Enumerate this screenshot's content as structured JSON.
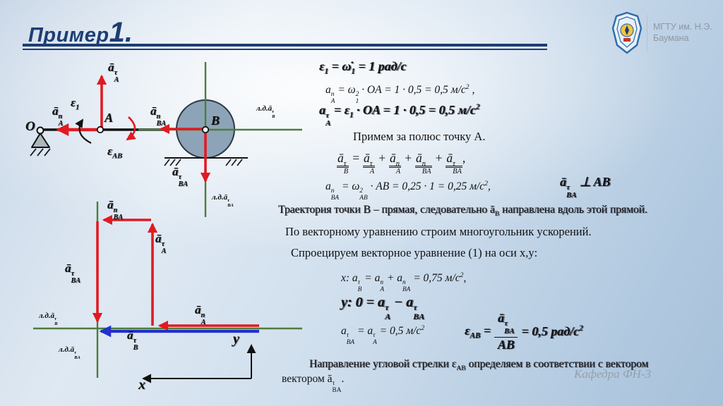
{
  "header": {
    "title_main": "Пример",
    "title_num": "1."
  },
  "logo": {
    "name_line1": "МГТУ им. Н.Э.",
    "name_line2": "Баумана"
  },
  "texts": {
    "pole": "Примем за полюс точку A.",
    "trajectory": "Траектория точки B – прямая, следовательно ā_{B} направлена вдоль этой прямой.",
    "polygon": "По векторному уравнению строим многоугольник ускорений.",
    "projection": "Спроецируем векторное уравнение (1) на оси x,y:",
    "direction1": "Направление угловой стрелки ε_{AB} определяем в соответствии с вектором",
    "direction2": "вектором ā_{BA}^{τ}.",
    "footer": "Кафедра ФН-3"
  },
  "formulas": {
    "f1": "ε_{1} = ω̇_{1} = 1 рад/с",
    "f2": "a_{A}^{n} = ω_{1}^{2} · OA = 1 · 0,5 = 0,5 м/с^{2} ,",
    "f3": "a_{A}^{τ} = ε_{1} · OA = 1 · 0,5 = 0,5 м/с^{2}",
    "eq": {
      "t1": "ā_{B}^{τ}",
      "o1": "=",
      "t2": "ā_{A}^{τ}",
      "o2": "+",
      "t3": "ā_{A}^{n}",
      "o3": "+",
      "t4": "ā_{BA}^{n}",
      "o4": "+",
      "t5": "ā_{BA}^{τ}",
      "o5": ","
    },
    "f4": "a_{BA}^{n} = ω_{AB}^{2} · AB = 0,25 · 1 = 0,25 м/с^{2},",
    "perp": "ā_{BA}^{τ} ⊥ AB",
    "fx": "x: a_{B}^{τ} = a_{A}^{n} + a_{BA}^{n} = 0,75 м/с^{2},",
    "fy": "y: 0 = a_{A}^{τ} − a_{BA}^{τ}",
    "f7": "a_{BA}^{τ} = a_{A}^{τ} = 0,5 м/с^{2}",
    "f8": {
      "pre": "ε_{AB} =",
      "num": "ā_{BA}^{τ}",
      "den": "AB",
      "post": "= 0,5 рад/с^{2}"
    }
  },
  "diagram_top": {
    "labels": {
      "aA_tau": "ā_{A}^{τ}",
      "eps1": "ε_{1}",
      "aA_n": "ā_{A}^{n}",
      "O": "O",
      "A": "A",
      "epsAB": "ε_{AB}",
      "aBA_n": "ā_{BA}^{n}",
      "B": "B",
      "loa_aB": "л.д.ā_{B}^{τ}",
      "aBA_tau": "ā_{BA}^{τ}",
      "loa_aBA": "л.д.ā_{BA}^{τ}"
    }
  },
  "diagram_bottom": {
    "labels": {
      "aBA_n": "ā_{BA}^{n}",
      "aA_tau": "ā_{A}^{τ}",
      "aBA_tau": "ā_{BA}^{τ}",
      "loa_aB": "л.д.ā_{B}^{τ}",
      "aA_n": "ā_{A}^{n}",
      "aB_tau": "ā_{B}^{τ}",
      "loa_aBA": "л.д.ā_{BA}^{τ}",
      "x": "x",
      "y": "y"
    }
  },
  "colors": {
    "accent_red": "#e11a22",
    "accent_green": "#4e7c3a",
    "accent_blue": "#2230cc",
    "title_navy": "#1d3e74",
    "wheel_fill": "#8da4b8"
  }
}
